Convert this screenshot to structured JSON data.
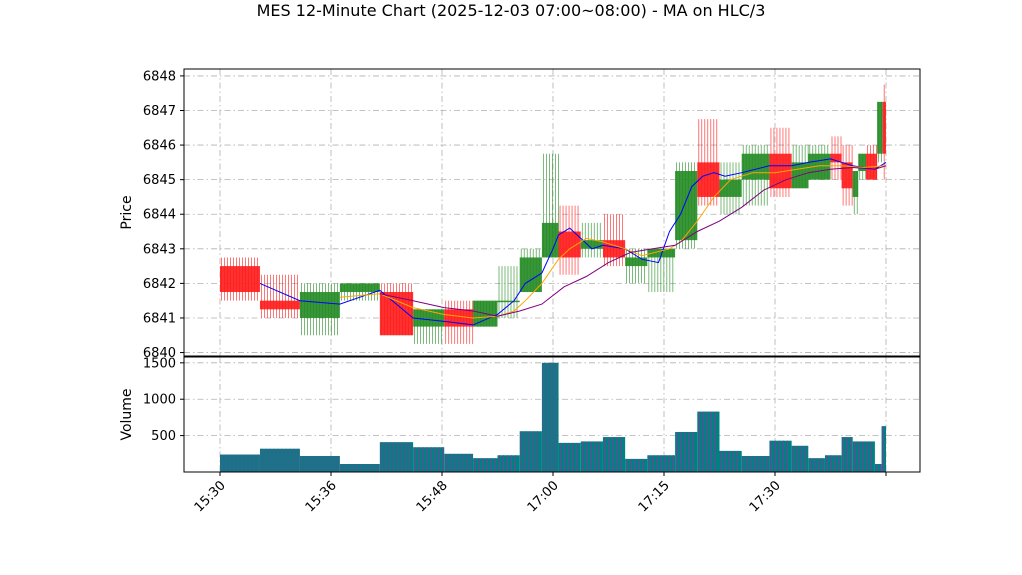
{
  "chart_data": {
    "type": "candlestick",
    "title": "MES 12-Minute Chart (2025-12-03 07:00~08:00) - MA on HLC/3",
    "price_panel": {
      "ylabel": "Price",
      "ylim": [
        6839.9,
        6848.2
      ],
      "yticks": [
        6840,
        6841,
        6842,
        6843,
        6844,
        6845,
        6846,
        6847,
        6848
      ],
      "grid": true
    },
    "volume_panel": {
      "ylabel": "Volume",
      "ylim": [
        0,
        1580
      ],
      "yticks": [
        500,
        1000,
        1500
      ],
      "yticklabels": [
        "500",
        "1000",
        "1500"
      ],
      "grid": true
    },
    "x_axis": {
      "domain": [
        0,
        60
      ],
      "ticks": [
        {
          "label": "15:30",
          "x": 0
        },
        {
          "label": "15:36",
          "x": 10
        },
        {
          "label": "15:48",
          "x": 20
        },
        {
          "label": "17:00",
          "x": 30
        },
        {
          "label": "17:15",
          "x": 40
        },
        {
          "label": "17:30",
          "x": 50
        },
        {
          "label": "",
          "x": 60
        }
      ]
    },
    "candles": [
      {
        "x0": 0,
        "x1": 3.6,
        "o": 6842.5,
        "h": 6842.75,
        "l": 6841.5,
        "c": 6841.75
      },
      {
        "x0": 3.6,
        "x1": 7.2,
        "o": 6841.5,
        "h": 6842.25,
        "l": 6841.0,
        "c": 6841.25
      },
      {
        "x0": 7.2,
        "x1": 10.8,
        "o": 6841.0,
        "h": 6842.0,
        "l": 6840.5,
        "c": 6841.75
      },
      {
        "x0": 10.8,
        "x1": 14.4,
        "o": 6841.75,
        "h": 6842.0,
        "l": 6841.5,
        "c": 6842.0
      },
      {
        "x0": 14.4,
        "x1": 17.4,
        "o": 6841.75,
        "h": 6842.0,
        "l": 6840.5,
        "c": 6840.5
      },
      {
        "x0": 17.4,
        "x1": 20.2,
        "o": 6840.75,
        "h": 6841.25,
        "l": 6840.25,
        "c": 6841.25
      },
      {
        "x0": 20.2,
        "x1": 22.8,
        "o": 6841.25,
        "h": 6841.5,
        "l": 6840.25,
        "c": 6840.75
      },
      {
        "x0": 22.8,
        "x1": 25.0,
        "o": 6840.75,
        "h": 6841.5,
        "l": 6840.75,
        "c": 6841.5
      },
      {
        "x0": 25.0,
        "x1": 27.0,
        "o": 6841.5,
        "h": 6842.5,
        "l": 6841.0,
        "c": 6841.5
      },
      {
        "x0": 27.0,
        "x1": 29.0,
        "o": 6841.75,
        "h": 6843.0,
        "l": 6841.75,
        "c": 6842.75
      },
      {
        "x0": 29.0,
        "x1": 30.5,
        "o": 6842.75,
        "h": 6845.75,
        "l": 6842.75,
        "c": 6843.75
      },
      {
        "x0": 30.5,
        "x1": 32.5,
        "o": 6843.5,
        "h": 6844.25,
        "l": 6842.25,
        "c": 6842.75
      },
      {
        "x0": 32.5,
        "x1": 34.5,
        "o": 6843.0,
        "h": 6843.75,
        "l": 6842.75,
        "c": 6843.25
      },
      {
        "x0": 34.5,
        "x1": 36.5,
        "o": 6843.25,
        "h": 6844.0,
        "l": 6842.5,
        "c": 6842.75
      },
      {
        "x0": 36.5,
        "x1": 38.5,
        "o": 6842.5,
        "h": 6843.0,
        "l": 6842.0,
        "c": 6842.75
      },
      {
        "x0": 38.5,
        "x1": 41.0,
        "o": 6842.75,
        "h": 6843.0,
        "l": 6841.75,
        "c": 6843.0
      },
      {
        "x0": 41.0,
        "x1": 43.0,
        "o": 6843.25,
        "h": 6845.5,
        "l": 6843.0,
        "c": 6845.25
      },
      {
        "x0": 43.0,
        "x1": 45.0,
        "o": 6845.5,
        "h": 6846.75,
        "l": 6844.25,
        "c": 6844.5
      },
      {
        "x0": 45.0,
        "x1": 47.0,
        "o": 6844.5,
        "h": 6845.5,
        "l": 6844.0,
        "c": 6845.0
      },
      {
        "x0": 47.0,
        "x1": 49.5,
        "o": 6845.0,
        "h": 6846.0,
        "l": 6844.25,
        "c": 6845.75
      },
      {
        "x0": 49.5,
        "x1": 51.5,
        "o": 6845.75,
        "h": 6846.5,
        "l": 6844.5,
        "c": 6844.75
      },
      {
        "x0": 51.5,
        "x1": 53.0,
        "o": 6844.75,
        "h": 6846.0,
        "l": 6844.75,
        "c": 6845.5
      },
      {
        "x0": 53.0,
        "x1": 55.0,
        "o": 6845.0,
        "h": 6846.0,
        "l": 6845.0,
        "c": 6845.75
      },
      {
        "x0": 55.0,
        "x1": 56.0,
        "o": 6845.75,
        "h": 6846.25,
        "l": 6845.0,
        "c": 6845.5
      },
      {
        "x0": 56.0,
        "x1": 57.0,
        "o": 6845.5,
        "h": 6846.0,
        "l": 6844.25,
        "c": 6844.75
      },
      {
        "x0": 57.0,
        "x1": 57.5,
        "o": 6844.5,
        "h": 6845.25,
        "l": 6844.0,
        "c": 6845.25
      },
      {
        "x0": 57.5,
        "x1": 58.2,
        "o": 6845.25,
        "h": 6845.75,
        "l": 6845.0,
        "c": 6845.75
      },
      {
        "x0": 58.2,
        "x1": 59.2,
        "o": 6845.75,
        "h": 6846.0,
        "l": 6845.0,
        "c": 6845.0
      },
      {
        "x0": 59.2,
        "x1": 59.7,
        "o": 6845.75,
        "h": 6847.25,
        "l": 6845.5,
        "c": 6847.25
      },
      {
        "x0": 59.7,
        "x1": 60.0,
        "o": 6847.25,
        "h": 6847.75,
        "l": 6845.0,
        "c": 6845.75
      }
    ],
    "volume": [
      {
        "x0": 0,
        "x1": 3.6,
        "v": 240
      },
      {
        "x0": 3.6,
        "x1": 7.2,
        "v": 320
      },
      {
        "x0": 7.2,
        "x1": 10.8,
        "v": 220
      },
      {
        "x0": 10.8,
        "x1": 14.4,
        "v": 110
      },
      {
        "x0": 14.4,
        "x1": 17.4,
        "v": 410
      },
      {
        "x0": 17.4,
        "x1": 20.2,
        "v": 340
      },
      {
        "x0": 20.2,
        "x1": 22.8,
        "v": 250
      },
      {
        "x0": 22.8,
        "x1": 25.0,
        "v": 190
      },
      {
        "x0": 25.0,
        "x1": 27.0,
        "v": 230
      },
      {
        "x0": 27.0,
        "x1": 29.0,
        "v": 560
      },
      {
        "x0": 29.0,
        "x1": 30.5,
        "v": 1500
      },
      {
        "x0": 30.5,
        "x1": 32.5,
        "v": 400
      },
      {
        "x0": 32.5,
        "x1": 34.5,
        "v": 420
      },
      {
        "x0": 34.5,
        "x1": 36.5,
        "v": 480
      },
      {
        "x0": 36.5,
        "x1": 38.5,
        "v": 180
      },
      {
        "x0": 38.5,
        "x1": 41.0,
        "v": 230
      },
      {
        "x0": 41.0,
        "x1": 43.0,
        "v": 550
      },
      {
        "x0": 43.0,
        "x1": 45.0,
        "v": 830
      },
      {
        "x0": 45.0,
        "x1": 47.0,
        "v": 290
      },
      {
        "x0": 47.0,
        "x1": 49.5,
        "v": 220
      },
      {
        "x0": 49.5,
        "x1": 51.5,
        "v": 430
      },
      {
        "x0": 51.5,
        "x1": 53.0,
        "v": 360
      },
      {
        "x0": 53.0,
        "x1": 54.5,
        "v": 190
      },
      {
        "x0": 54.5,
        "x1": 56.0,
        "v": 230
      },
      {
        "x0": 56.0,
        "x1": 57.0,
        "v": 480
      },
      {
        "x0": 57.0,
        "x1": 59.0,
        "v": 420
      },
      {
        "x0": 59.0,
        "x1": 59.6,
        "v": 110
      },
      {
        "x0": 59.6,
        "x1": 60.0,
        "v": 630
      }
    ],
    "moving_averages": [
      {
        "color": "#0000ff",
        "points": [
          [
            3.6,
            6842.0
          ],
          [
            7.2,
            6841.5
          ],
          [
            10.8,
            6841.4
          ],
          [
            14.4,
            6841.8
          ],
          [
            17.4,
            6841.0
          ],
          [
            20.2,
            6840.9
          ],
          [
            22.8,
            6840.8
          ],
          [
            25.0,
            6841.1
          ],
          [
            26.5,
            6841.5
          ],
          [
            27.5,
            6842.0
          ],
          [
            29.0,
            6842.3
          ],
          [
            30.0,
            6843.0
          ],
          [
            30.5,
            6843.4
          ],
          [
            31.5,
            6843.6
          ],
          [
            32.5,
            6843.3
          ],
          [
            33.5,
            6843.0
          ],
          [
            34.5,
            6843.1
          ],
          [
            36.5,
            6843.0
          ],
          [
            38.0,
            6842.7
          ],
          [
            39.5,
            6842.6
          ],
          [
            40.5,
            6843.5
          ],
          [
            41.5,
            6844.0
          ],
          [
            42.5,
            6844.8
          ],
          [
            43.5,
            6845.1
          ],
          [
            44.5,
            6845.2
          ],
          [
            45.5,
            6845.1
          ],
          [
            47.0,
            6845.2
          ],
          [
            49.5,
            6845.4
          ],
          [
            51.5,
            6845.4
          ],
          [
            53.0,
            6845.5
          ],
          [
            55.0,
            6845.6
          ],
          [
            57.0,
            6845.4
          ],
          [
            59.0,
            6845.3
          ],
          [
            60.0,
            6845.5
          ]
        ]
      },
      {
        "color": "#ffa500",
        "points": [
          [
            10.8,
            6841.6
          ],
          [
            14.4,
            6841.7
          ],
          [
            17.4,
            6841.3
          ],
          [
            20.2,
            6841.1
          ],
          [
            22.8,
            6841.0
          ],
          [
            25.0,
            6841.05
          ],
          [
            26.5,
            6841.2
          ],
          [
            27.5,
            6841.5
          ],
          [
            29.0,
            6842.0
          ],
          [
            30.5,
            6842.7
          ],
          [
            31.5,
            6843.0
          ],
          [
            33.0,
            6843.3
          ],
          [
            34.5,
            6843.2
          ],
          [
            36.5,
            6843.0
          ],
          [
            38.0,
            6842.8
          ],
          [
            40.5,
            6843.0
          ],
          [
            41.5,
            6843.2
          ],
          [
            43.0,
            6843.8
          ],
          [
            44.5,
            6844.5
          ],
          [
            46.0,
            6845.0
          ],
          [
            48.0,
            6845.2
          ],
          [
            50.0,
            6845.2
          ],
          [
            52.0,
            6845.3
          ],
          [
            54.0,
            6845.4
          ],
          [
            56.0,
            6845.4
          ],
          [
            58.0,
            6845.35
          ],
          [
            60.0,
            6845.4
          ]
        ]
      },
      {
        "color": "#800080",
        "points": [
          [
            14.4,
            6841.7
          ],
          [
            17.4,
            6841.5
          ],
          [
            20.2,
            6841.3
          ],
          [
            22.8,
            6841.2
          ],
          [
            25.0,
            6841.05
          ],
          [
            27.0,
            6841.2
          ],
          [
            29.0,
            6841.4
          ],
          [
            31.0,
            6841.9
          ],
          [
            33.0,
            6842.2
          ],
          [
            35.0,
            6842.6
          ],
          [
            37.0,
            6842.9
          ],
          [
            39.0,
            6843.0
          ],
          [
            41.0,
            6843.1
          ],
          [
            43.0,
            6843.5
          ],
          [
            45.0,
            6843.8
          ],
          [
            47.0,
            6844.2
          ],
          [
            49.0,
            6844.7
          ],
          [
            51.0,
            6845.0
          ],
          [
            53.0,
            6845.2
          ],
          [
            55.0,
            6845.3
          ],
          [
            57.0,
            6845.35
          ],
          [
            59.0,
            6845.3
          ],
          [
            60.0,
            6845.4
          ]
        ]
      }
    ],
    "colors": {
      "up": "#228b22",
      "down": "#ff1a1a",
      "volume": "#008080",
      "volume_stripe": "#7b3fa0",
      "grid": "#b0b0b0"
    }
  }
}
